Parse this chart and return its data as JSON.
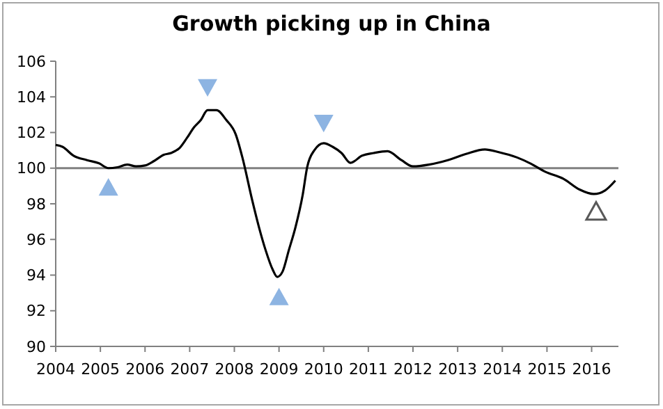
{
  "chart_data": {
    "type": "line",
    "title": "Growth picking up in China",
    "x": [
      2004.0,
      2004.15,
      2004.4,
      2004.7,
      2004.97,
      2005.18,
      2005.38,
      2005.6,
      2005.8,
      2006.0,
      2006.2,
      2006.42,
      2006.58,
      2006.78,
      2006.94,
      2007.1,
      2007.25,
      2007.4,
      2007.6,
      2007.82,
      2008.03,
      2008.18,
      2008.4,
      2008.55,
      2008.7,
      2008.86,
      2008.96,
      2009.08,
      2009.22,
      2009.37,
      2009.53,
      2009.63,
      2009.79,
      2010.0,
      2010.2,
      2010.4,
      2010.6,
      2010.86,
      2011.12,
      2011.43,
      2011.74,
      2012.0,
      2012.36,
      2012.78,
      2013.19,
      2013.61,
      2013.92,
      2014.33,
      2014.64,
      2014.96,
      2015.37,
      2015.73,
      2016.05,
      2016.3,
      2016.53
    ],
    "series": [
      {
        "color": "#000000",
        "values": [
          101.3,
          101.2,
          100.7,
          100.45,
          100.27,
          100.0,
          100.05,
          100.2,
          100.1,
          100.15,
          100.4,
          100.75,
          100.85,
          101.15,
          101.7,
          102.3,
          102.7,
          103.25,
          103.25,
          102.7,
          101.9,
          100.6,
          98.2,
          96.7,
          95.4,
          94.3,
          93.9,
          94.2,
          95.4,
          96.7,
          98.5,
          100.05,
          101.0,
          101.4,
          101.2,
          100.85,
          100.3,
          100.7,
          100.85,
          100.95,
          100.45,
          100.1,
          100.2,
          100.45,
          100.8,
          101.05,
          100.9,
          100.6,
          100.25,
          99.8,
          99.4,
          98.8,
          98.55,
          98.75,
          99.3
        ]
      },
      {
        "type": "scatter",
        "marker": "triangle",
        "color": "#8db4e2",
        "x": [
          2005.18,
          2009.0
        ],
        "values": [
          98.95,
          92.8
        ]
      },
      {
        "type": "scatter",
        "marker": "triangle-down",
        "color": "#8db4e2",
        "x": [
          2007.4,
          2010.0
        ],
        "values": [
          104.5,
          102.5
        ]
      },
      {
        "type": "scatter",
        "marker": "triangle-open",
        "color": "#595959",
        "x": [
          2016.1
        ],
        "values": [
          97.6
        ]
      }
    ],
    "xlim": [
      2004,
      2016.6
    ],
    "xticks": [
      2004,
      2005,
      2006,
      2007,
      2008,
      2009,
      2010,
      2011,
      2012,
      2013,
      2014,
      2015,
      2016
    ],
    "ylim": [
      90,
      106
    ],
    "yticks": [
      90,
      92,
      94,
      96,
      98,
      100,
      102,
      104,
      106
    ],
    "ref_lines": [
      {
        "axis": "y",
        "value": 100,
        "color": "#808080"
      }
    ],
    "grid": false
  }
}
